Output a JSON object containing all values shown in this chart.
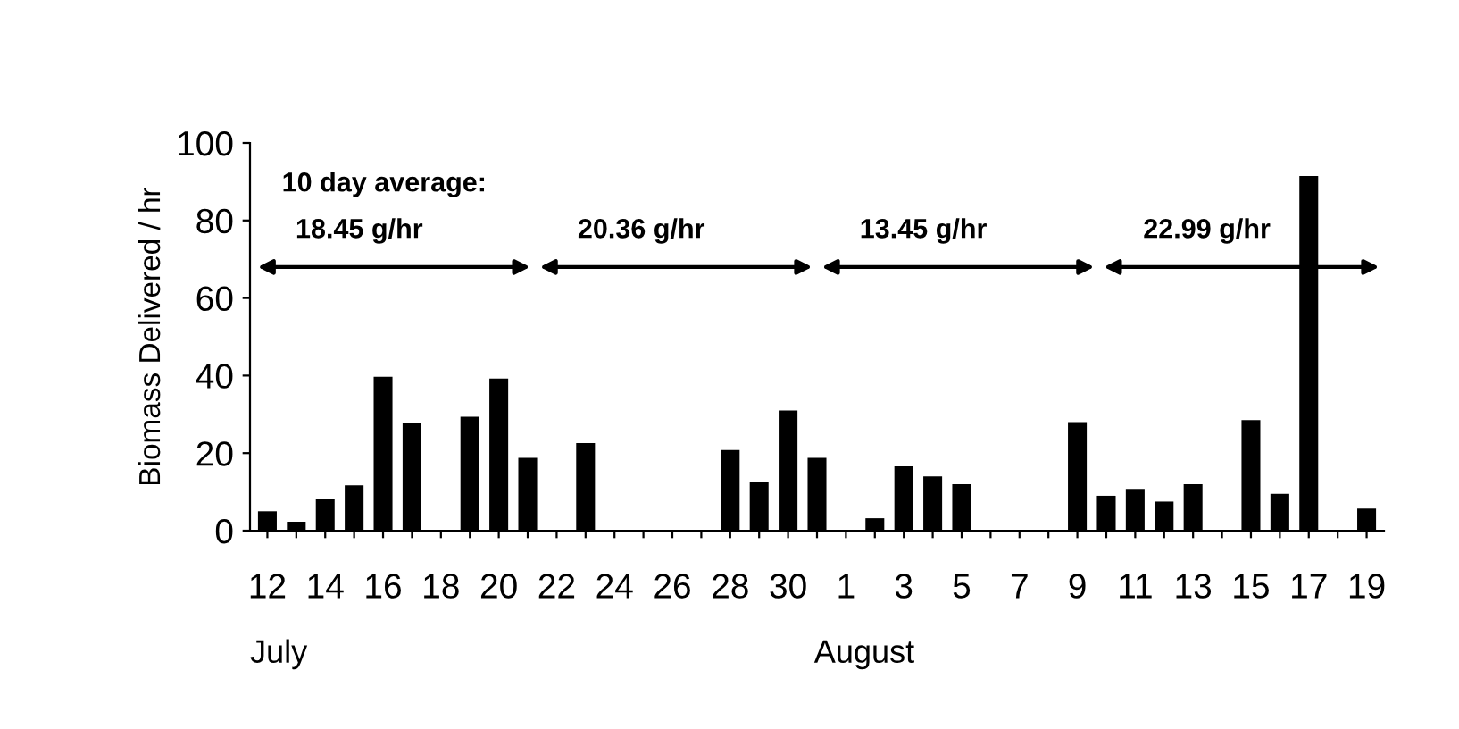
{
  "chart_data": {
    "type": "bar",
    "ylabel": "Biomass Delivered / hr",
    "categories": [
      "12",
      null,
      "14",
      null,
      "16",
      null,
      "18",
      null,
      "20",
      null,
      "22",
      null,
      "24",
      null,
      "26",
      null,
      "28",
      null,
      "30",
      null,
      "1",
      null,
      "3",
      null,
      "5",
      null,
      "7",
      null,
      "9",
      null,
      "11",
      null,
      "13",
      null,
      "15",
      null,
      "17",
      null,
      "19"
    ],
    "values": [
      5,
      2.3,
      8.2,
      11.7,
      39.7,
      27.7,
      0,
      29.4,
      39.2,
      18.8,
      0,
      22.6,
      0,
      0,
      0,
      0,
      20.8,
      12.6,
      31,
      18.8,
      0,
      3.2,
      16.6,
      14,
      12,
      0,
      0,
      0,
      28,
      9,
      10.8,
      7.5,
      12,
      0,
      28.5,
      9.5,
      91.5,
      0,
      5.7
    ],
    "color": "#000000",
    "ylim": [
      0,
      100
    ],
    "yticks": [
      0,
      20,
      40,
      60,
      80,
      100
    ],
    "grid": false,
    "annotations": [
      "10 day average:",
      "18.45 g/hr",
      "20.36 g/hr",
      "13.45 g/hr",
      "22.99 g/hr",
      "July",
      "August"
    ]
  }
}
